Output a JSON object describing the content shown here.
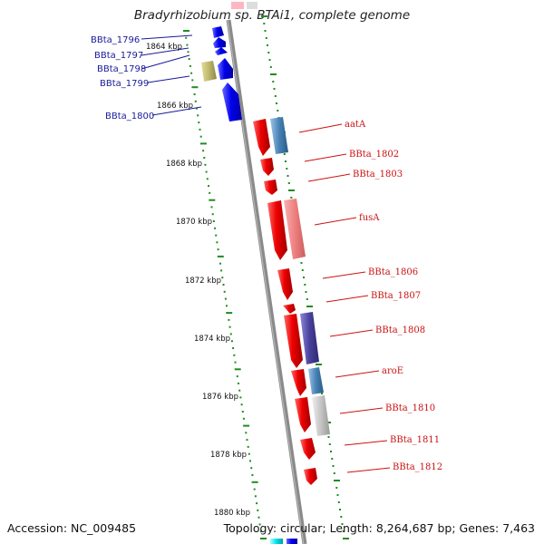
{
  "title": "Bradyrhizobium sp. BTAi1, complete genome",
  "accession": "Accession: NC_009485",
  "topology": "Topology: circular; Length: 8,264,687 bp; Genes: 7,463",
  "ticks": [
    "1864 kbp",
    "1866 kbp",
    "1868 kbp",
    "1870 kbp",
    "1872 kbp",
    "1874 kbp",
    "1876 kbp",
    "1878 kbp",
    "1880 kbp"
  ],
  "left_genes": [
    "BBta_1796",
    "BBta_1797",
    "BBta_1798",
    "BBta_1799",
    "BBta_1800"
  ],
  "right_genes": [
    "aatA",
    "BBta_1802",
    "BBta_1803",
    "fusA",
    "BBta_1806",
    "BBta_1807",
    "BBta_1808",
    "aroE",
    "BBta_1810",
    "BBta_1811",
    "BBta_1812"
  ],
  "colors": {
    "forward_cds": "#0000ee",
    "reverse_cds": "#ee0000",
    "backbone": "#8a8a8a",
    "tick_marks": "#228b22",
    "label_left": "#1a1a9a",
    "label_right": "#cc1111"
  }
}
